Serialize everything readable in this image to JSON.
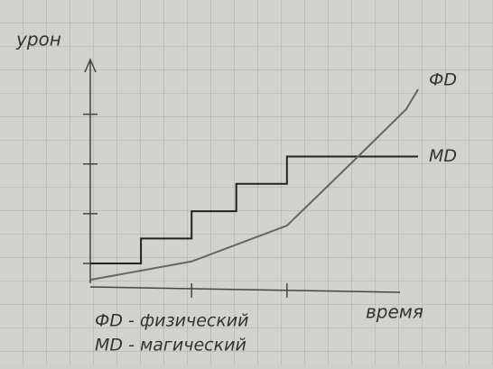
{
  "chart_data": {
    "type": "line",
    "y_label": "урон",
    "x_label": "время",
    "legend_lines": [
      "ФD - физический",
      "MD - магический"
    ],
    "xlim": [
      0,
      11
    ],
    "ylim": [
      0.6,
      5.1
    ],
    "xticks": [
      3.4,
      6.6
    ],
    "yticks": [
      1,
      2,
      3,
      4
    ],
    "series": [
      {
        "name": "MD",
        "color": "#222222",
        "x": [
          0,
          1.7,
          1.7,
          3.4,
          3.4,
          4.9,
          4.9,
          6.6,
          6.6,
          11
        ],
        "values": [
          1,
          1,
          1.5,
          1.5,
          2.05,
          2.05,
          2.6,
          2.6,
          3.15,
          3.15
        ]
      },
      {
        "name": "ФD",
        "color": "#666666",
        "x": [
          0,
          3.4,
          6.6,
          8.8,
          10.6,
          11
        ],
        "values": [
          0.67,
          1.04,
          1.76,
          3.04,
          4.1,
          4.5
        ]
      }
    ]
  }
}
